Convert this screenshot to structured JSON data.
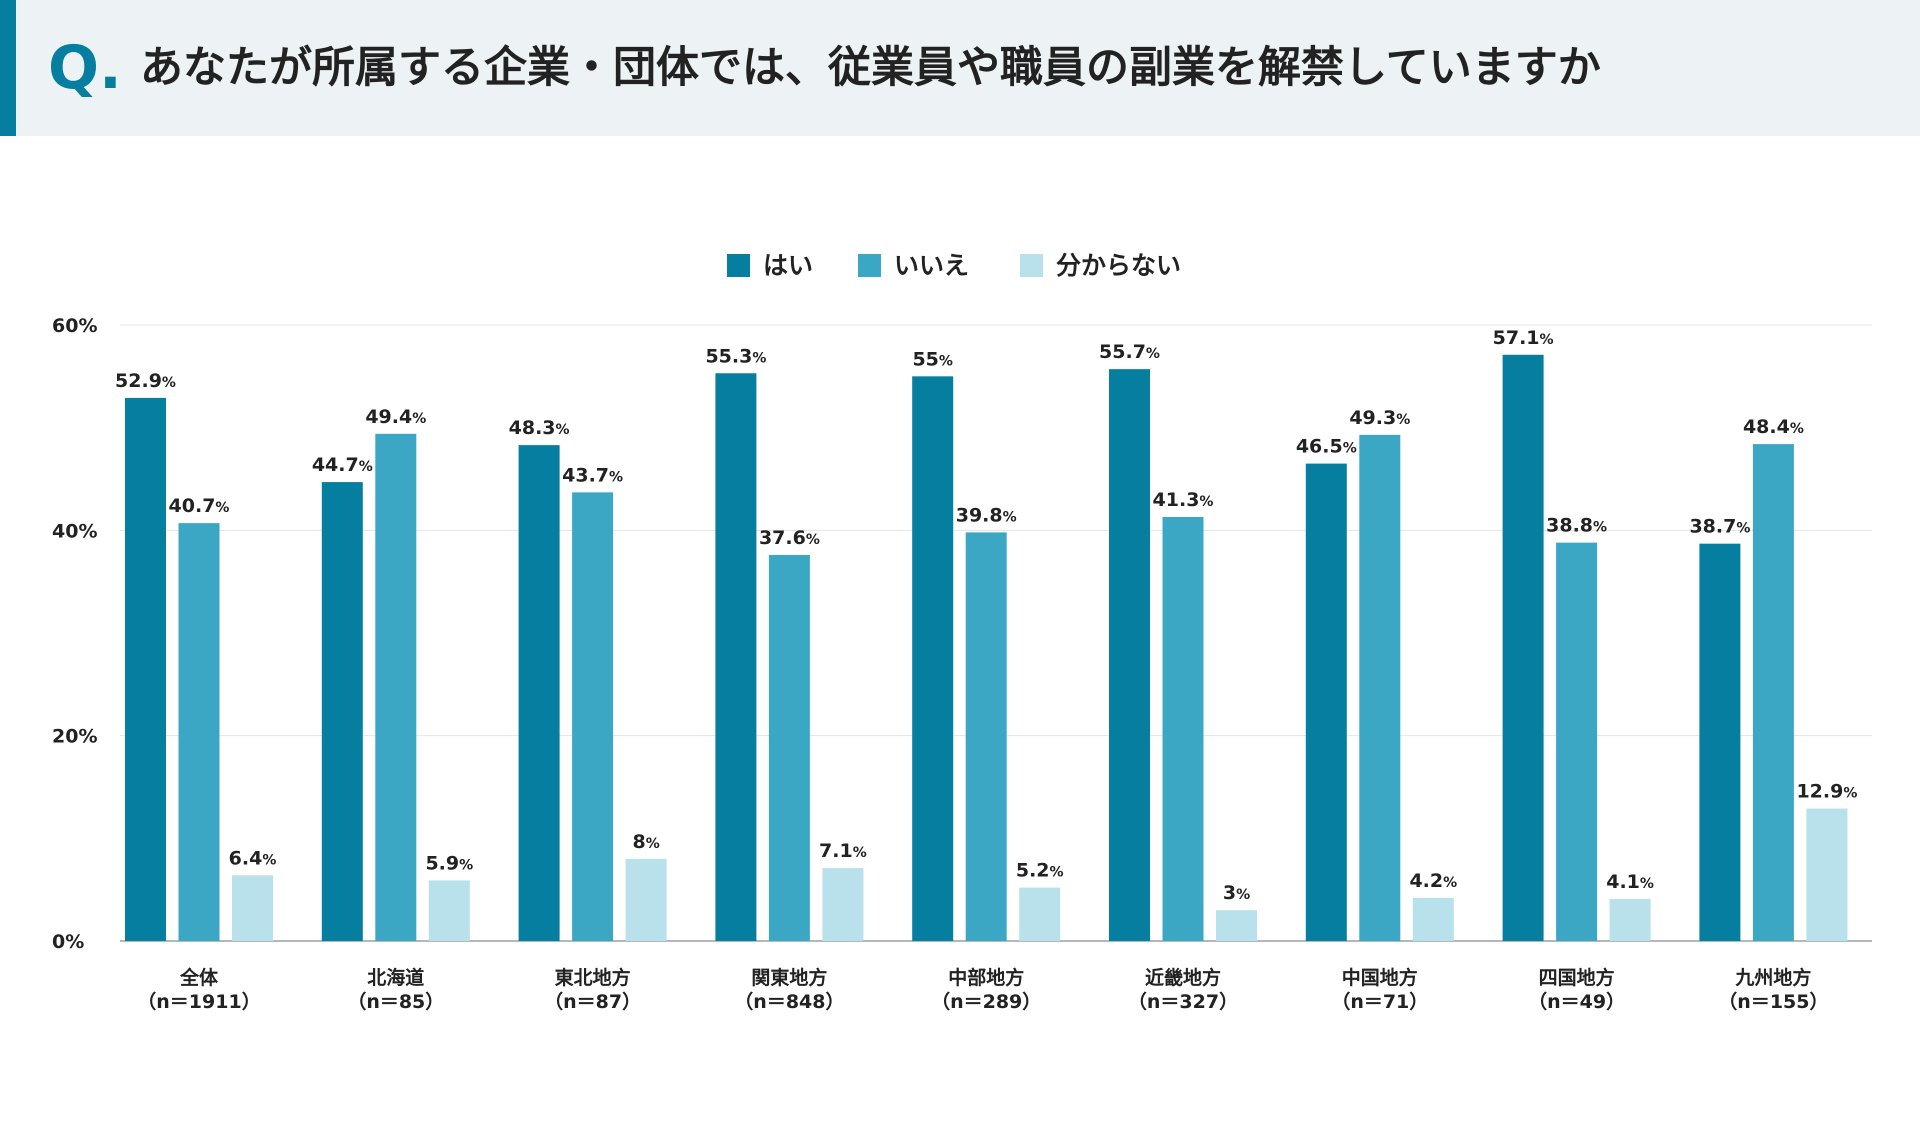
{
  "header": {
    "q_mark": "Q.",
    "title": "あなたが所属する企業・団体では、従業員や職員の副業を解禁していますか"
  },
  "chart_data": {
    "type": "bar",
    "categories": [
      {
        "name": "全体",
        "n": "（n＝1911）"
      },
      {
        "name": "北海道",
        "n": "（n＝85）"
      },
      {
        "name": "東北地方",
        "n": "（n＝87）"
      },
      {
        "name": "関東地方",
        "n": "（n＝848）"
      },
      {
        "name": "中部地方",
        "n": "（n＝289）"
      },
      {
        "name": "近畿地方",
        "n": "（n＝327）"
      },
      {
        "name": "中国地方",
        "n": "（n＝71）"
      },
      {
        "name": "四国地方",
        "n": "（n＝49）"
      },
      {
        "name": "九州地方",
        "n": "（n＝155）"
      }
    ],
    "series": [
      {
        "name": "はい",
        "color": "#067ea0",
        "values": [
          52.9,
          44.7,
          48.3,
          55.3,
          55,
          55.7,
          46.5,
          57.1,
          38.7
        ]
      },
      {
        "name": "いいえ",
        "color": "#3ba7c4",
        "values": [
          40.7,
          49.4,
          43.7,
          37.6,
          39.8,
          41.3,
          49.3,
          38.8,
          48.4
        ]
      },
      {
        "name": "分からない",
        "color": "#b8e1ec",
        "values": [
          6.4,
          5.9,
          8,
          7.1,
          5.2,
          3,
          4.2,
          4.1,
          12.9
        ]
      }
    ],
    "value_suffix": "%",
    "ylim": [
      0,
      60
    ],
    "yticks": [
      {
        "value": 0,
        "label": "0%"
      },
      {
        "value": 20,
        "label": "20%"
      },
      {
        "value": 40,
        "label": "40%"
      },
      {
        "value": 60,
        "label": "60%"
      }
    ],
    "grid": true,
    "legend": "top-center",
    "xlabel": "",
    "ylabel": ""
  }
}
